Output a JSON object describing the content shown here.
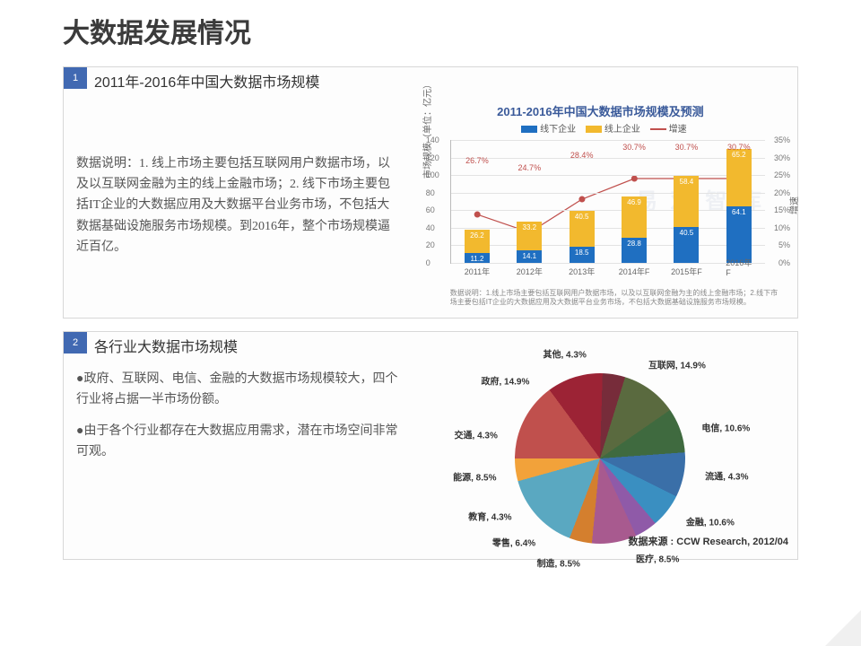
{
  "page_title": "大数据发展情况",
  "section1": {
    "num": "1",
    "heading": "2011年-2016年中国大数据市场规模",
    "body_text": "数据说明：1. 线上市场主要包括互联网用户数据市场，以及以互联网金融为主的线上金融市场；2. 线下市场主要包括IT企业的大数据应用及大数据平台业务市场，不包括大数据基础设施服务市场规模。到2016年，整个市场规模逼近百亿。",
    "chart": {
      "type": "stacked_bar_with_line_dual_axis",
      "title": "2011-2016年中国大数据市场规模及预测",
      "legend": {
        "series_a": "线下企业",
        "series_b": "线上企业",
        "series_line": "增速"
      },
      "categories": [
        "2011年",
        "2012年",
        "2013年",
        "2014年F",
        "2015年F",
        "2016年F"
      ],
      "bar_bottom_values": [
        11.2,
        14.1,
        18.5,
        28.8,
        40.5,
        64.1
      ],
      "bar_top_values": [
        26.2,
        33.2,
        40.5,
        46.9,
        58.4,
        65.2
      ],
      "line_values_pct": [
        26.7,
        24.7,
        28.4,
        30.7,
        30.7,
        30.7
      ],
      "line_labels": [
        "26.7%",
        "24.7%",
        "28.4%",
        "30.7%",
        "30.7%",
        "30.7%"
      ],
      "y_left": {
        "min": 0,
        "max": 140,
        "step": 20,
        "title": "市场规模（单位：亿元）"
      },
      "y_right": {
        "min": 0,
        "max": 35,
        "step": 5,
        "title": "增速"
      },
      "colors": {
        "bar_bottom": "#1f6fc1",
        "bar_top": "#f2b92e",
        "line": "#c0504d",
        "grid": "#e3e3e3",
        "title": "#3a5a9a"
      },
      "footnote": "数据说明：1.线上市场主要包括互联网用户数据市场，以及以互联网金融为主的线上金融市场；2.线下市场主要包括IT企业的大数据应用及大数据平台业务市场，不包括大数据基础设施服务市场规模。",
      "watermark": "易 观 智 库"
    }
  },
  "section2": {
    "num": "2",
    "heading": "各行业大数据市场规模",
    "bullets": [
      "●政府、互联网、电信、金融的大数据市场规模较大，四个行业将占据一半市场份额。",
      "●由于各个行业都存在大数据应用需求，潜在市场空间非常可观。"
    ],
    "pie": {
      "type": "pie",
      "slices": [
        {
          "label": "互联网",
          "value": 14.9,
          "color": "#c0504d"
        },
        {
          "label": "电信",
          "value": 10.6,
          "color": "#9c2335"
        },
        {
          "label": "流通",
          "value": 4.3,
          "color": "#772c3a"
        },
        {
          "label": "金融",
          "value": 10.6,
          "color": "#5a6a3f"
        },
        {
          "label": "医疗",
          "value": 8.5,
          "color": "#3f6a3f"
        },
        {
          "label": "制造",
          "value": 8.5,
          "color": "#3a6fa8"
        },
        {
          "label": "零售",
          "value": 6.4,
          "color": "#3a8fc1"
        },
        {
          "label": "教育",
          "value": 4.3,
          "color": "#8f5aa8"
        },
        {
          "label": "能源",
          "value": 8.5,
          "color": "#a85a8f"
        },
        {
          "label": "交通",
          "value": 4.3,
          "color": "#d47f2e"
        },
        {
          "label": "政府",
          "value": 14.9,
          "color": "#5aa8c1"
        },
        {
          "label": "其他",
          "value": 4.3,
          "color": "#f2a23a"
        }
      ],
      "source": "数据来源 : CCW Research, 2012/04"
    }
  }
}
